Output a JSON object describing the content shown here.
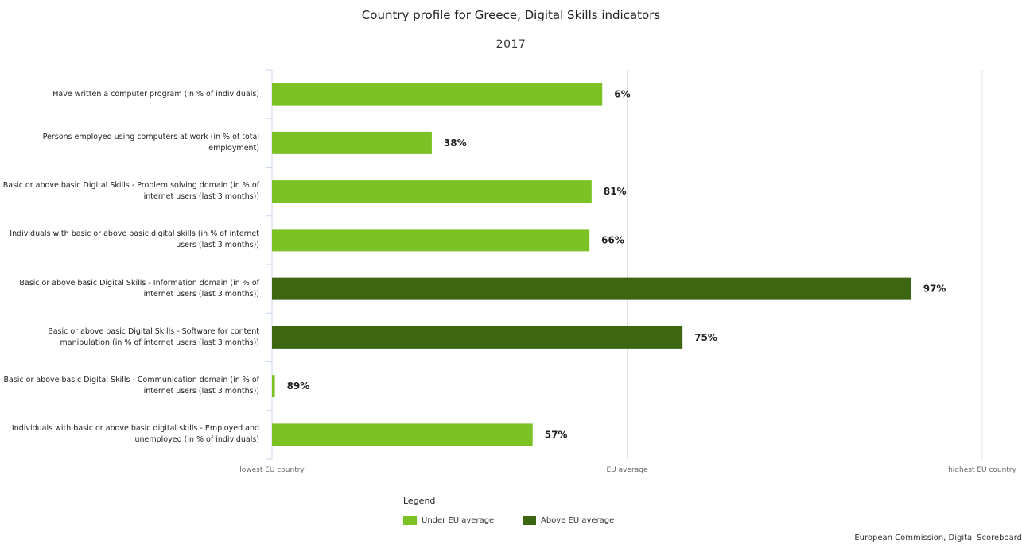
{
  "colors": {
    "under": "#7dc225",
    "above": "#3c6612",
    "grid": "#e2e2e2"
  },
  "chart_data": {
    "type": "bar",
    "orientation": "horizontal",
    "title": "Country profile for Greece, Digital Skills indicators",
    "subtitle": "2017",
    "categories": [
      "Have written a computer program (in % of individuals)",
      "Persons employed using computers at work (in % of total employment)",
      "Basic or above basic Digital Skills - Problem solving domain (in % of internet users (last 3 months))",
      "Individuals with basic or above basic digital skills (in % of internet users (last 3 months))",
      "Basic or above basic Digital Skills - Information domain (in % of internet users (last 3 months))",
      "Basic or above basic Digital Skills - Software for content manipulation (in % of internet users (last 3 months))",
      "Basic or above basic Digital Skills - Communication domain (in % of internet users (last 3 months))",
      "Individuals with basic or above basic digital skills - Employed and unemployed (in % of individuals)"
    ],
    "values": [
      0.465,
      0.225,
      0.45,
      0.447,
      0.9,
      0.578,
      0.004,
      0.367
    ],
    "data_labels": [
      "6%",
      "38%",
      "81%",
      "66%",
      "97%",
      "75%",
      "89%",
      "57%"
    ],
    "status": [
      "under",
      "under",
      "under",
      "under",
      "above",
      "above",
      "under",
      "under"
    ],
    "xaxis_ticks": [
      "lowest EU country",
      "EU average",
      "highest EU country"
    ],
    "xlim": [
      0,
      1
    ],
    "grid": true
  },
  "legend": {
    "title": "Legend",
    "items": [
      {
        "label": "Under EU average",
        "status": "under"
      },
      {
        "label": "Above EU average",
        "status": "above"
      }
    ]
  },
  "credits": "European Commission, Digital Scoreboard"
}
